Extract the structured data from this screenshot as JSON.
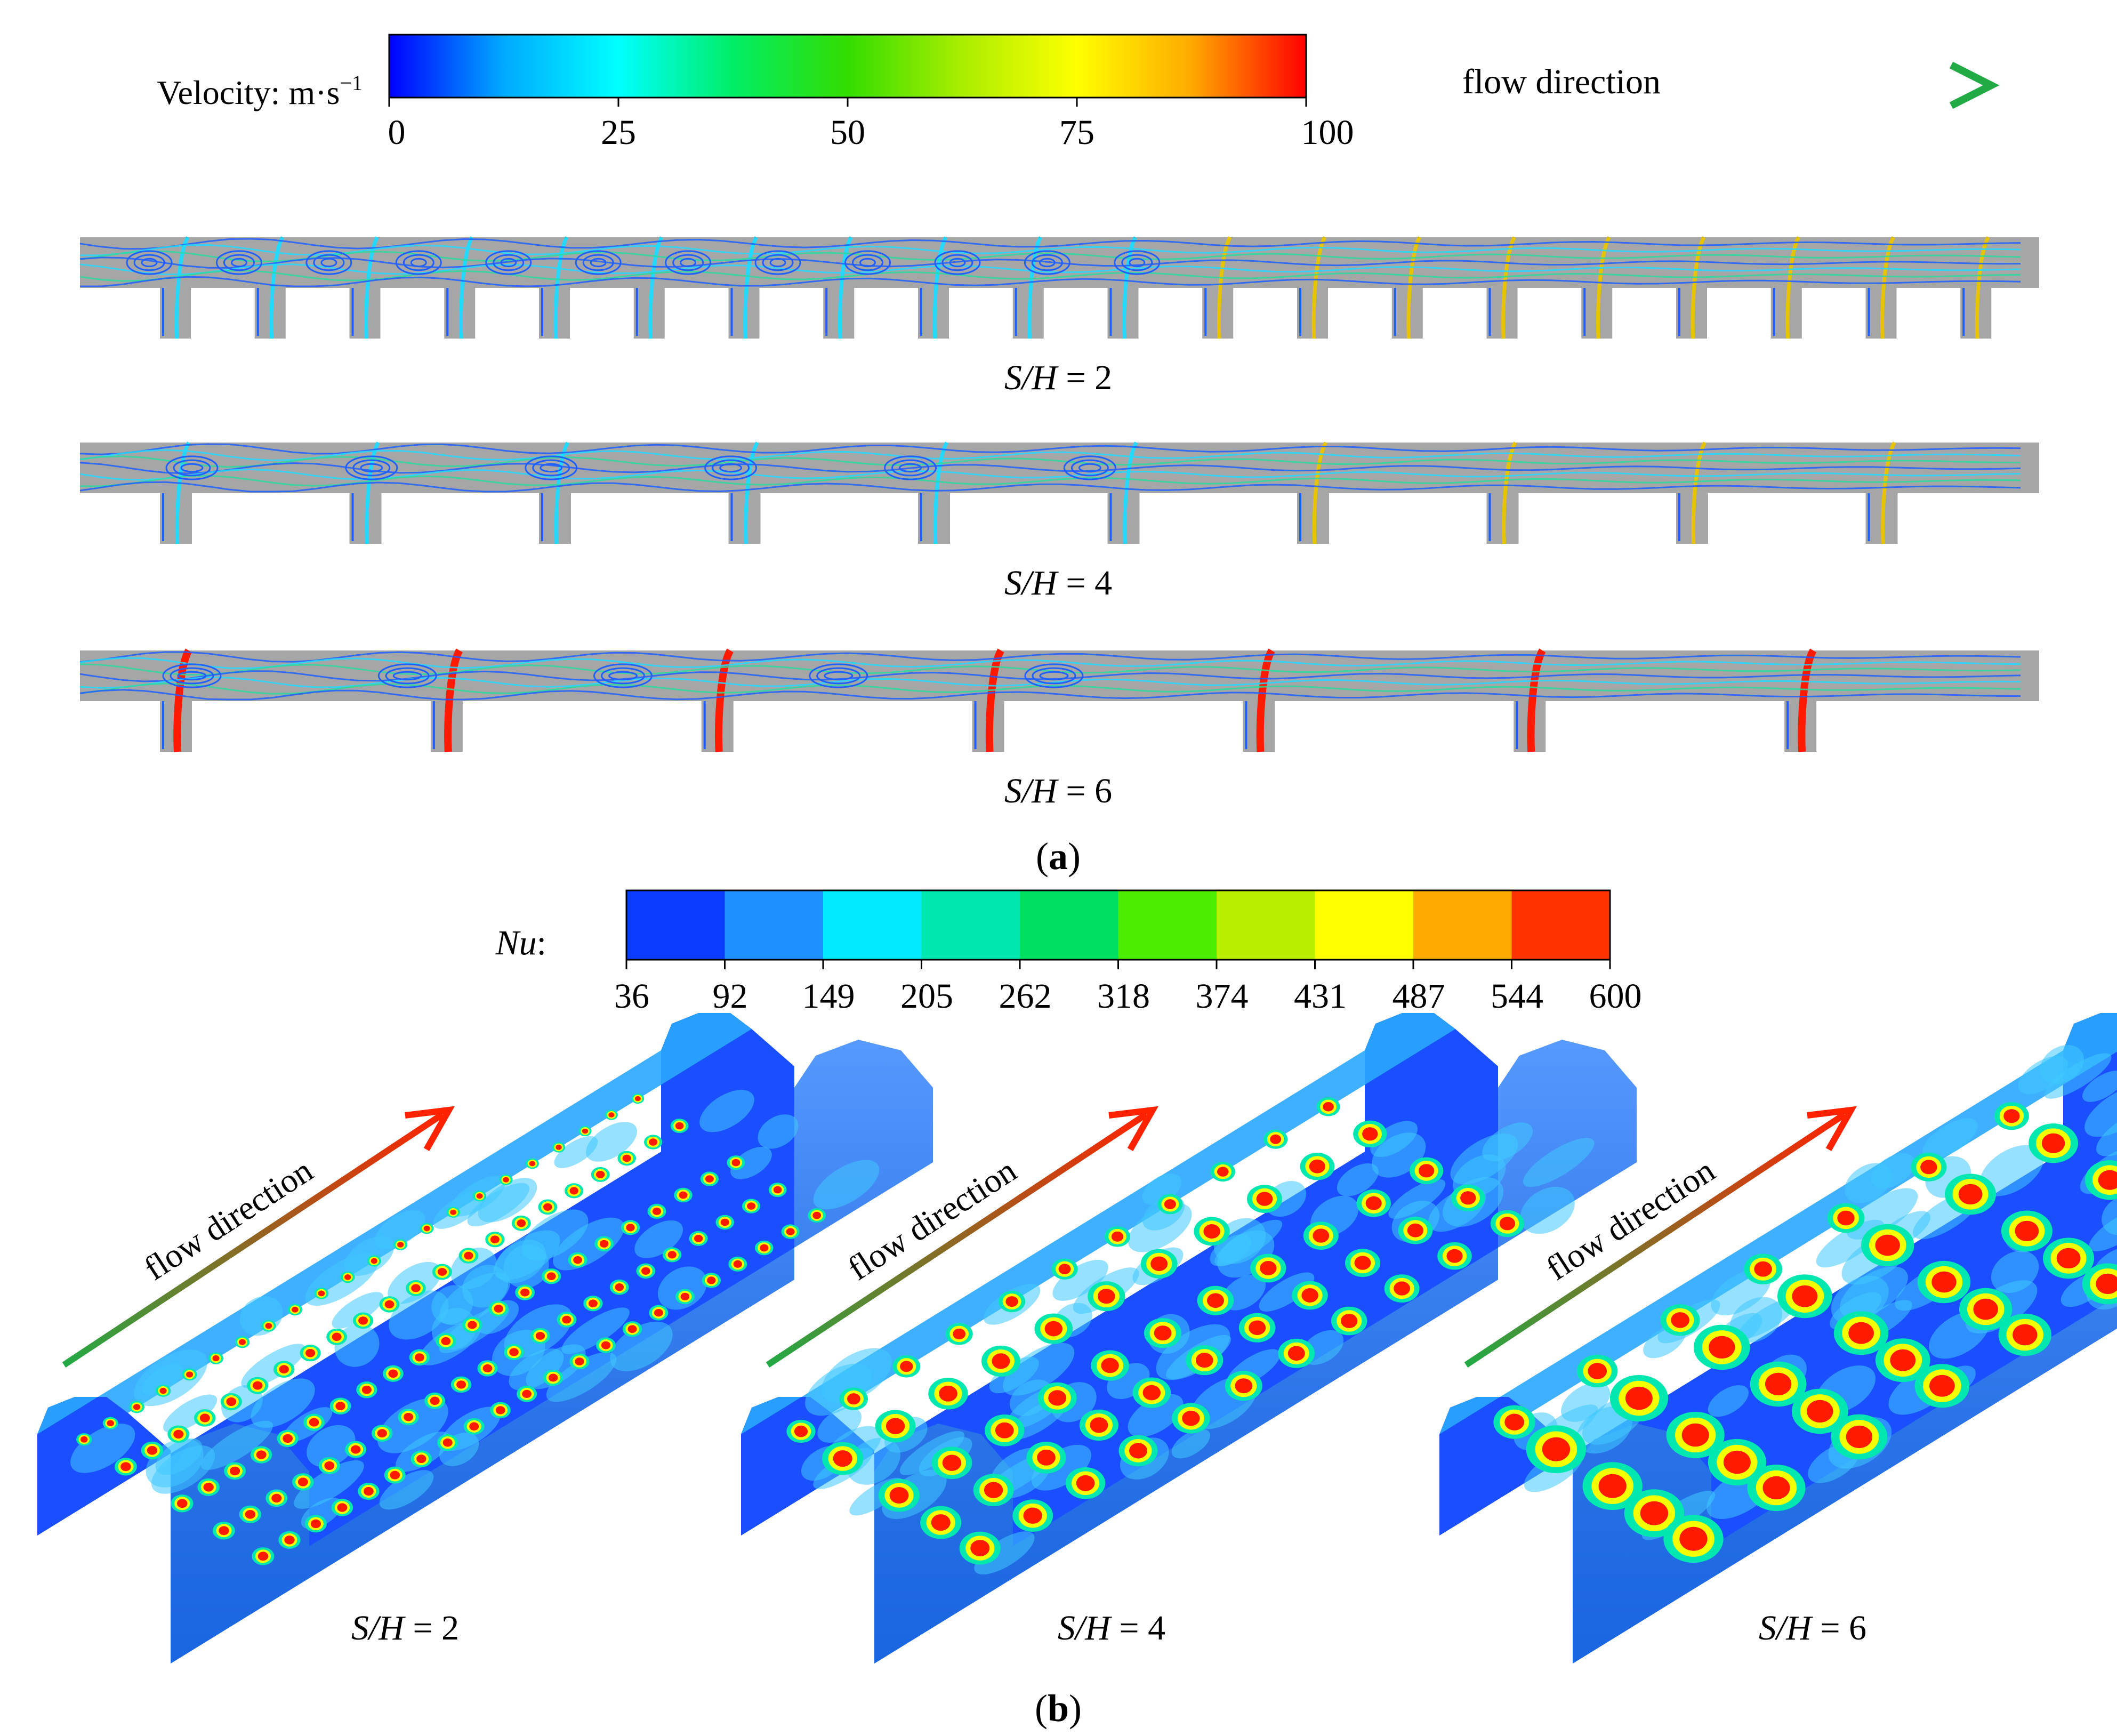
{
  "velocity_legend": {
    "label": "Velocity: m·s",
    "label_sup": "−1",
    "ticks": [
      "0",
      "25",
      "50",
      "75",
      "100"
    ],
    "gradient_colors": [
      "#0000ff",
      "#00aaff",
      "#00ffff",
      "#00ee66",
      "#33dd00",
      "#aaee00",
      "#ffff00",
      "#ffaa00",
      "#ff0000"
    ]
  },
  "flow_direction_top": {
    "label": "flow direction",
    "arrow_colors": [
      "#ff2200",
      "#22aa44"
    ]
  },
  "panel_a": {
    "caption_letter": "a",
    "rows": [
      {
        "var": "S/H",
        "eq": " = 2",
        "ribs": 20
      },
      {
        "var": "S/H",
        "eq": " = 4",
        "ribs": 10
      },
      {
        "var": "S/H",
        "eq": " = 6",
        "ribs": 7
      }
    ]
  },
  "nu_legend": {
    "label": "Nu",
    "label_suffix": ":",
    "ticks": [
      "36",
      "92",
      "149",
      "205",
      "262",
      "318",
      "374",
      "431",
      "487",
      "544",
      "600"
    ],
    "band_colors": [
      "#0a3cff",
      "#1e90ff",
      "#00eaff",
      "#00e8b0",
      "#00e060",
      "#4cee00",
      "#b8f000",
      "#ffff00",
      "#ffaa00",
      "#ff3300"
    ]
  },
  "panel_b": {
    "caption_letter": "b",
    "flow_label": "flow direction",
    "items": [
      {
        "var": "S/H",
        "eq": " = 2"
      },
      {
        "var": "S/H",
        "eq": " = 4"
      },
      {
        "var": "S/H",
        "eq": " = 6"
      }
    ]
  },
  "colors": {
    "channel_gray": "#a6a6a6",
    "streamline_blue": "#1f5fff",
    "streamline_cyan": "#22d8ff",
    "surface_base": "#1a4fff",
    "surface_light": "#3fc8ff",
    "spot_red": "#ff1a00",
    "spot_yellow": "#f4ff00"
  }
}
